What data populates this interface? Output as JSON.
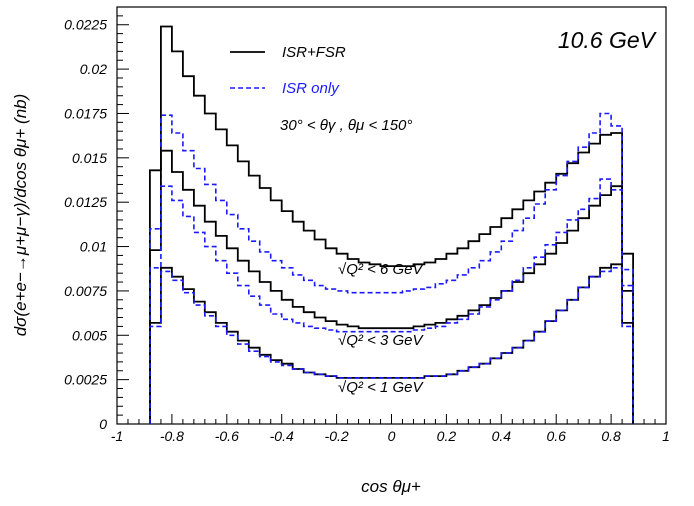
{
  "chart_data": {
    "type": "line",
    "title": "10.6 GeV",
    "xlabel": "cos θμ+",
    "ylabel": "dσ(e+e−→μ+μ−γ)/dcos θμ+ (nb)",
    "xlim": [
      -1,
      1
    ],
    "ylim": [
      0,
      0.0235
    ],
    "x_ticks": [
      "-1",
      "-0.8",
      "-0.6",
      "-0.4",
      "-0.2",
      "0",
      "0.2",
      "0.4",
      "0.6",
      "0.8",
      "1"
    ],
    "y_ticks": [
      "0",
      "0.0025",
      "0.005",
      "0.0075",
      "0.01",
      "0.0125",
      "0.015",
      "0.0175",
      "0.02",
      "0.0225"
    ],
    "grid": false,
    "legend_position": "top-left",
    "legend": [
      {
        "label": "ISR+FSR",
        "color": "#000000",
        "dash": "solid"
      },
      {
        "label": "ISR only",
        "color": "#1a1aff",
        "dash": "dashed"
      }
    ],
    "cut_label": "30° < θγ , θμ < 150°",
    "annotations": [
      "√Q² < 6 GeV",
      "√Q² < 3 GeV",
      "√Q² < 1 GeV"
    ],
    "bin_edges": [
      -0.88,
      -0.84,
      -0.8,
      -0.76,
      -0.72,
      -0.68,
      -0.64,
      -0.6,
      -0.56,
      -0.52,
      -0.48,
      -0.44,
      -0.4,
      -0.36,
      -0.32,
      -0.28,
      -0.24,
      -0.2,
      -0.16,
      -0.12,
      -0.08,
      -0.04,
      0,
      0.04,
      0.08,
      0.12,
      0.16,
      0.2,
      0.24,
      0.28,
      0.32,
      0.36,
      0.4,
      0.44,
      0.48,
      0.52,
      0.56,
      0.6,
      0.64,
      0.68,
      0.72,
      0.76,
      0.8,
      0.84,
      0.88
    ],
    "series": [
      {
        "name": "ISR+FSR",
        "group": "√Q² < 6 GeV",
        "color": "#000000",
        "dash": "solid",
        "values": [
          0.0143,
          0.0224,
          0.021,
          0.0196,
          0.0185,
          0.0175,
          0.0166,
          0.0157,
          0.0148,
          0.014,
          0.0133,
          0.0126,
          0.012,
          0.0114,
          0.0109,
          0.0104,
          0.0099,
          0.0096,
          0.0093,
          0.0091,
          0.009,
          0.0089,
          0.0089,
          0.0089,
          0.009,
          0.0091,
          0.0093,
          0.0096,
          0.0099,
          0.0103,
          0.0107,
          0.0111,
          0.0116,
          0.0121,
          0.0126,
          0.0131,
          0.0136,
          0.0141,
          0.0147,
          0.0153,
          0.0158,
          0.0163,
          0.0164,
          0.0096
        ]
      },
      {
        "name": "ISR only",
        "group": "√Q² < 6 GeV",
        "color": "#1a1aff",
        "dash": "dashed",
        "values": [
          0.011,
          0.0174,
          0.0164,
          0.0154,
          0.0144,
          0.0135,
          0.0126,
          0.0118,
          0.011,
          0.0103,
          0.0097,
          0.0092,
          0.0088,
          0.0084,
          0.0081,
          0.0078,
          0.0076,
          0.0075,
          0.0074,
          0.0074,
          0.0074,
          0.0074,
          0.0074,
          0.0075,
          0.0076,
          0.0077,
          0.0079,
          0.0081,
          0.0084,
          0.0088,
          0.0092,
          0.0097,
          0.0103,
          0.0109,
          0.0116,
          0.0124,
          0.0132,
          0.014,
          0.0148,
          0.0156,
          0.0164,
          0.0175,
          0.0168,
          0.0087
        ]
      },
      {
        "name": "ISR+FSR",
        "group": "√Q² < 3 GeV",
        "color": "#000000",
        "dash": "solid",
        "values": [
          0.0098,
          0.0154,
          0.0142,
          0.0132,
          0.0123,
          0.0114,
          0.0106,
          0.0099,
          0.0092,
          0.0086,
          0.008,
          0.0075,
          0.007,
          0.0066,
          0.0063,
          0.006,
          0.0058,
          0.0056,
          0.0055,
          0.0054,
          0.0054,
          0.0054,
          0.0054,
          0.0054,
          0.0055,
          0.0056,
          0.0057,
          0.0059,
          0.0061,
          0.0064,
          0.0067,
          0.0071,
          0.0075,
          0.008,
          0.0085,
          0.009,
          0.0096,
          0.0102,
          0.0109,
          0.0116,
          0.0123,
          0.0129,
          0.0134,
          0.0075
        ]
      },
      {
        "name": "ISR only",
        "group": "√Q² < 3 GeV",
        "color": "#1a1aff",
        "dash": "dashed",
        "values": [
          0.0088,
          0.0134,
          0.0126,
          0.0117,
          0.0108,
          0.01,
          0.0092,
          0.0085,
          0.0078,
          0.0072,
          0.0067,
          0.0062,
          0.0059,
          0.0057,
          0.0055,
          0.0054,
          0.0053,
          0.0052,
          0.0052,
          0.0052,
          0.0052,
          0.0052,
          0.0052,
          0.0052,
          0.0053,
          0.0054,
          0.0055,
          0.0057,
          0.0059,
          0.0062,
          0.0066,
          0.007,
          0.0075,
          0.0081,
          0.0088,
          0.0094,
          0.0101,
          0.0108,
          0.0115,
          0.0121,
          0.0127,
          0.0138,
          0.0132,
          0.0078
        ]
      },
      {
        "name": "ISR+FSR",
        "group": "√Q² < 1 GeV",
        "color": "#000000",
        "dash": "solid",
        "values": [
          0.0057,
          0.0088,
          0.0083,
          0.0076,
          0.0069,
          0.0063,
          0.0057,
          0.0052,
          0.0047,
          0.0043,
          0.0039,
          0.0036,
          0.0034,
          0.0031,
          0.0029,
          0.0028,
          0.0027,
          0.0026,
          0.0026,
          0.0026,
          0.0026,
          0.0026,
          0.0026,
          0.0026,
          0.0026,
          0.0027,
          0.0027,
          0.0028,
          0.003,
          0.0032,
          0.0034,
          0.0037,
          0.004,
          0.0043,
          0.0047,
          0.0052,
          0.0058,
          0.0064,
          0.007,
          0.0077,
          0.0083,
          0.0088,
          0.009,
          0.0057
        ]
      },
      {
        "name": "ISR only",
        "group": "√Q² < 1 GeV",
        "color": "#1a1aff",
        "dash": "dashed",
        "values": [
          0.0055,
          0.0086,
          0.0081,
          0.0074,
          0.0067,
          0.0061,
          0.0055,
          0.005,
          0.0045,
          0.0041,
          0.0038,
          0.0035,
          0.0033,
          0.0031,
          0.0029,
          0.0028,
          0.0027,
          0.0026,
          0.0026,
          0.0026,
          0.0026,
          0.0026,
          0.0026,
          0.0026,
          0.0026,
          0.0027,
          0.0027,
          0.0028,
          0.003,
          0.0032,
          0.0034,
          0.0037,
          0.004,
          0.0043,
          0.0047,
          0.0052,
          0.0058,
          0.0064,
          0.007,
          0.0077,
          0.0083,
          0.0086,
          0.0088,
          0.0055
        ]
      }
    ]
  }
}
